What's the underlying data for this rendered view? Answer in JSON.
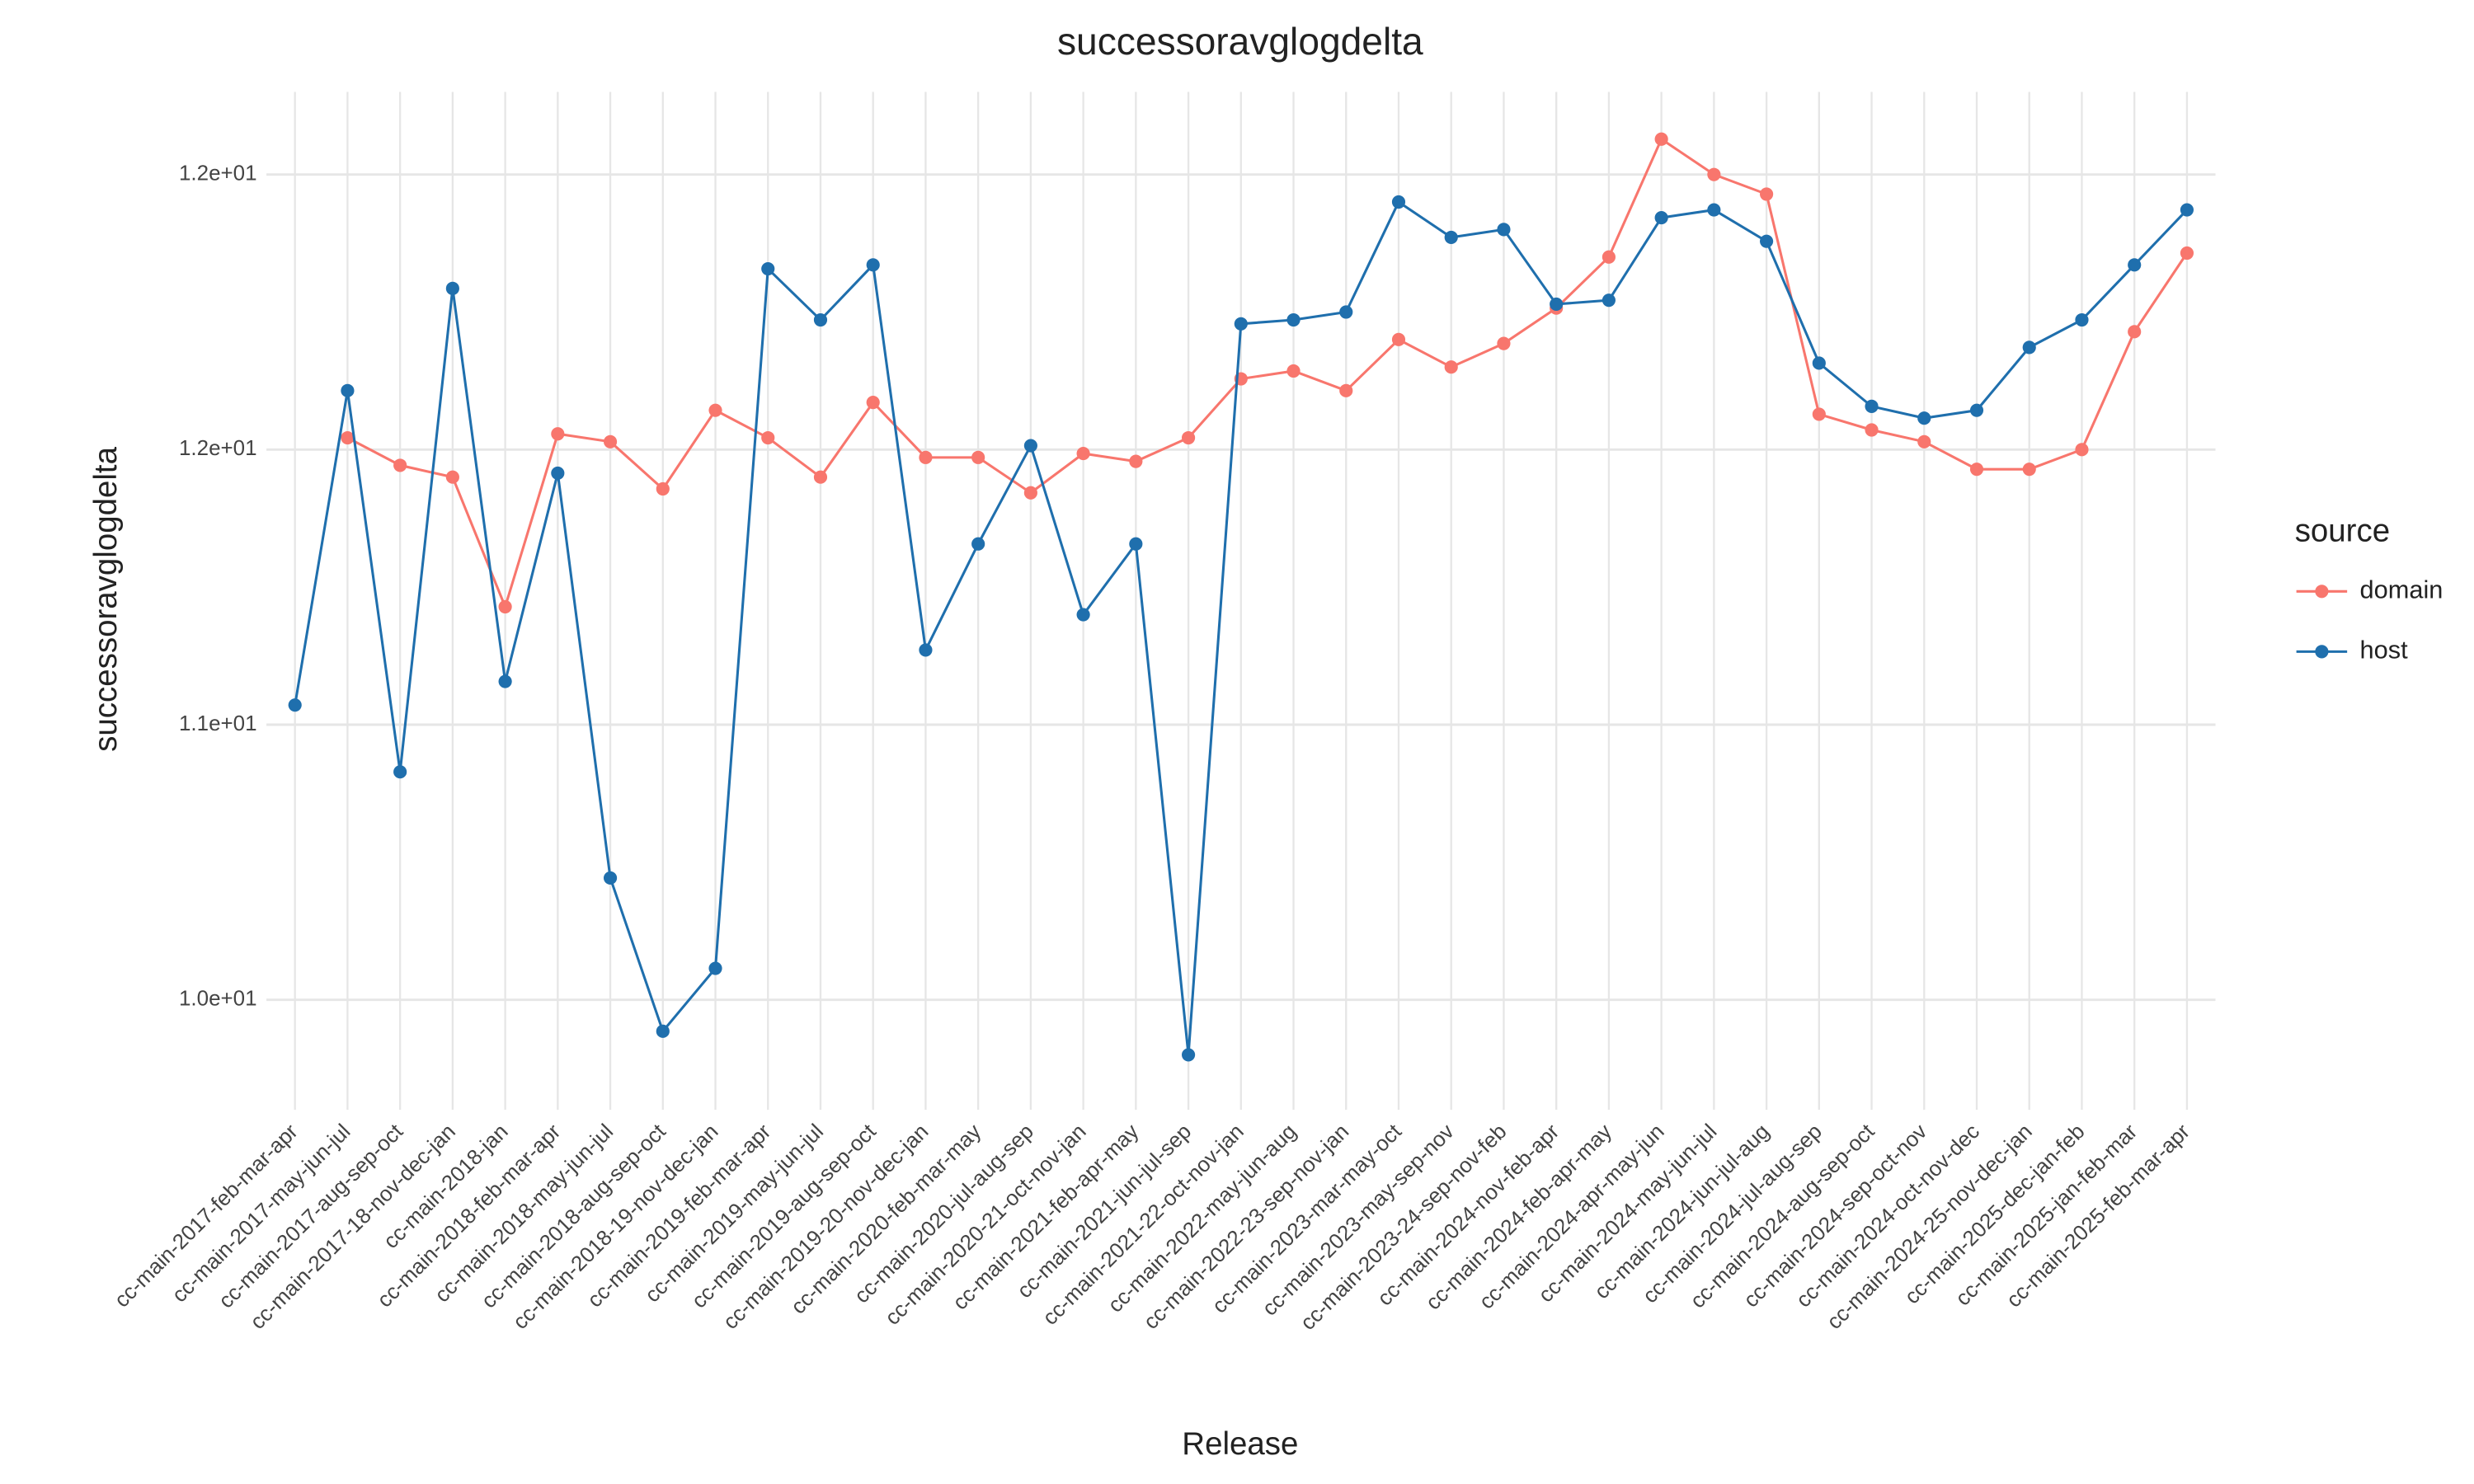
{
  "chart_data": {
    "type": "line",
    "title": "successoravglogdelta",
    "xlabel": "Release",
    "ylabel": "successoravglogdelta",
    "legend_title": "source",
    "grid": true,
    "categories": [
      "cc-main-2017-feb-mar-apr",
      "cc-main-2017-may-jun-jul",
      "cc-main-2017-aug-sep-oct",
      "cc-main-2017-18-nov-dec-jan",
      "cc-main-2018-jan",
      "cc-main-2018-feb-mar-apr",
      "cc-main-2018-may-jun-jul",
      "cc-main-2018-aug-sep-oct",
      "cc-main-2018-19-nov-dec-jan",
      "cc-main-2019-feb-mar-apr",
      "cc-main-2019-may-jun-jul",
      "cc-main-2019-aug-sep-oct",
      "cc-main-2019-20-nov-dec-jan",
      "cc-main-2020-feb-mar-may",
      "cc-main-2020-jul-aug-sep",
      "cc-main-2020-21-oct-nov-jan",
      "cc-main-2021-feb-apr-may",
      "cc-main-2021-jun-jul-sep",
      "cc-main-2021-22-oct-nov-jan",
      "cc-main-2022-may-jun-aug",
      "cc-main-2022-23-sep-nov-jan",
      "cc-main-2023-mar-may-oct",
      "cc-main-2023-may-sep-nov",
      "cc-main-2023-24-sep-nov-feb",
      "cc-main-2024-nov-feb-apr",
      "cc-main-2024-feb-apr-may",
      "cc-main-2024-apr-may-jun",
      "cc-main-2024-may-jun-jul",
      "cc-main-2024-jun-jul-aug",
      "cc-main-2024-jul-aug-sep",
      "cc-main-2024-aug-sep-oct",
      "cc-main-2024-sep-oct-nov",
      "cc-main-2024-oct-nov-dec",
      "cc-main-2024-25-nov-dec-jan",
      "cc-main-2025-dec-jan-feb",
      "cc-main-2025-jan-feb-mar",
      "cc-main-2025-feb-mar-apr"
    ],
    "series": [
      {
        "name": "domain",
        "color": "#f8766d",
        "values": [
          null,
          11.63,
          11.56,
          11.53,
          11.2,
          11.64,
          11.62,
          11.5,
          11.7,
          11.63,
          11.53,
          11.72,
          11.58,
          11.58,
          11.49,
          11.59,
          11.57,
          11.63,
          11.78,
          11.8,
          11.75,
          11.88,
          11.81,
          11.87,
          11.96,
          12.09,
          12.39,
          12.3,
          12.25,
          11.69,
          11.65,
          11.62,
          11.55,
          11.55,
          11.6,
          11.9,
          12.1
        ]
      },
      {
        "name": "host",
        "color": "#1f6fad",
        "values": [
          10.95,
          11.75,
          10.78,
          12.01,
          11.01,
          11.54,
          10.51,
          10.12,
          10.28,
          12.06,
          11.93,
          12.07,
          11.09,
          11.36,
          11.61,
          11.18,
          11.36,
          10.06,
          11.92,
          11.93,
          11.95,
          12.23,
          12.14,
          12.16,
          11.97,
          11.98,
          12.19,
          12.21,
          12.13,
          11.82,
          11.71,
          11.68,
          11.7,
          11.86,
          11.93,
          12.07,
          12.21
        ]
      }
    ],
    "ylim": [
      9.92,
      12.51
    ],
    "yticks": [
      {
        "value": 10.2,
        "label": "1.0e+01"
      },
      {
        "value": 10.9,
        "label": "1.1e+01"
      },
      {
        "value": 11.6,
        "label": "1.2e+01"
      },
      {
        "value": 12.3,
        "label": "1.2e+01"
      }
    ]
  }
}
